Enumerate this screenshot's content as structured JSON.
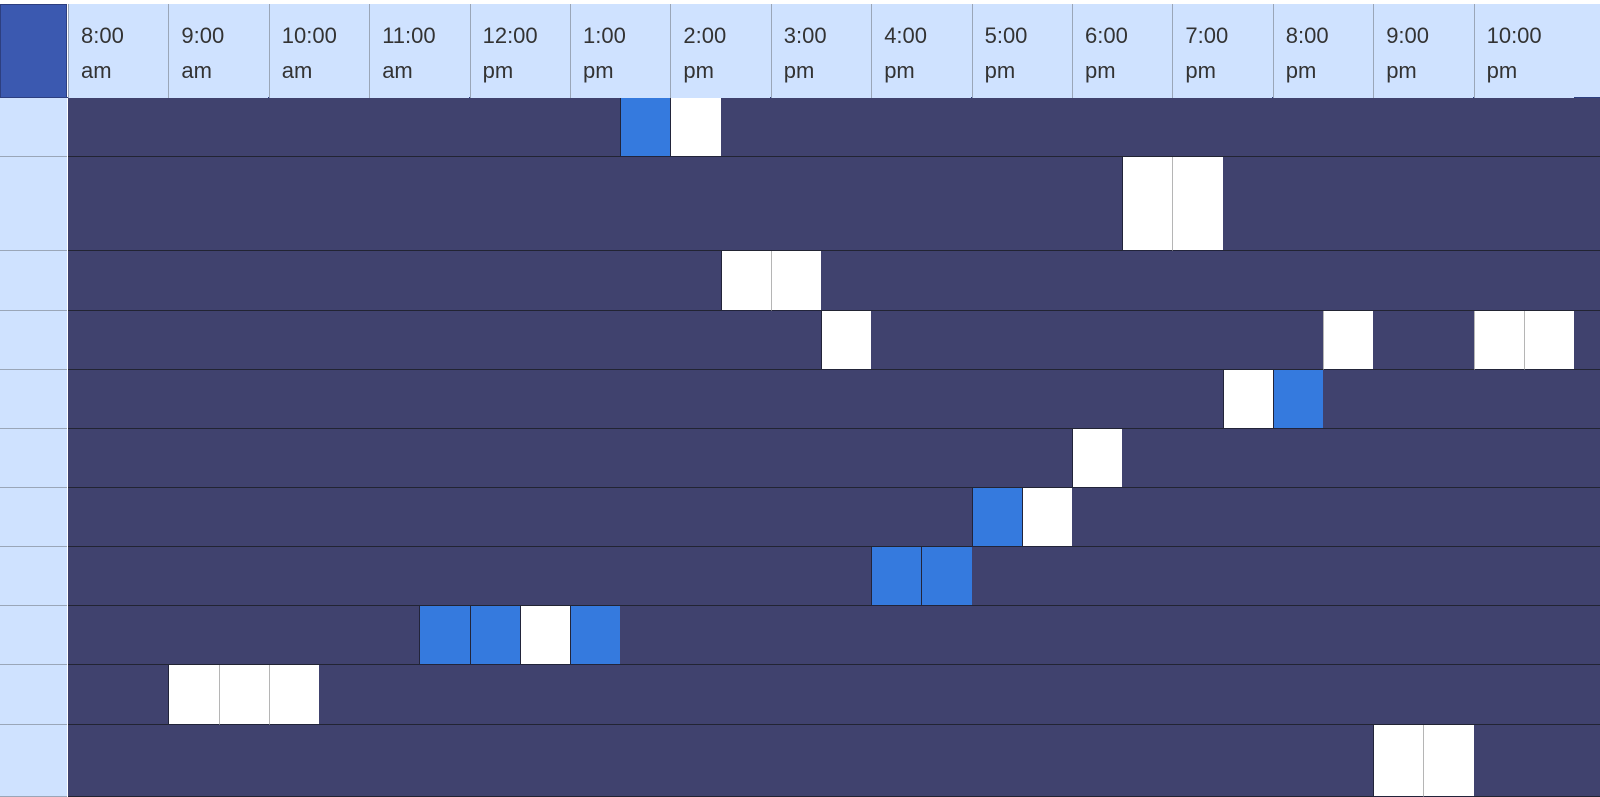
{
  "time_columns": [
    {
      "hour": "8:00",
      "period": "am"
    },
    {
      "hour": "9:00",
      "period": "am"
    },
    {
      "hour": "10:00",
      "period": "am"
    },
    {
      "hour": "11:00",
      "period": "am"
    },
    {
      "hour": "12:00",
      "period": "pm"
    },
    {
      "hour": "1:00",
      "period": "pm"
    },
    {
      "hour": "2:00",
      "period": "pm"
    },
    {
      "hour": "3:00",
      "period": "pm"
    },
    {
      "hour": "4:00",
      "period": "pm"
    },
    {
      "hour": "5:00",
      "period": "pm"
    },
    {
      "hour": "6:00",
      "period": "pm"
    },
    {
      "hour": "7:00",
      "period": "pm"
    },
    {
      "hour": "8:00",
      "period": "pm"
    },
    {
      "hour": "9:00",
      "period": "pm"
    },
    {
      "hour": "10:00",
      "period": "pm"
    }
  ],
  "slot_minutes": 30,
  "colors": {
    "header_bg": "#cfe2ff",
    "corner_bg": "#3b59b0",
    "unavailable": "#40426e",
    "available": "#ffffff",
    "selected": "#357ade"
  },
  "rows": [
    {
      "slots": [
        {
          "slot": 11,
          "state": "selected"
        },
        {
          "slot": 12,
          "state": "available"
        }
      ]
    },
    {
      "slots": [
        {
          "slot": 21,
          "state": "available"
        },
        {
          "slot": 22,
          "state": "available"
        }
      ]
    },
    {
      "slots": [
        {
          "slot": 13,
          "state": "available"
        },
        {
          "slot": 14,
          "state": "available"
        }
      ]
    },
    {
      "slots": [
        {
          "slot": 15,
          "state": "available"
        },
        {
          "slot": 25,
          "state": "available"
        },
        {
          "slot": 28,
          "state": "available"
        },
        {
          "slot": 29,
          "state": "available"
        }
      ]
    },
    {
      "slots": [
        {
          "slot": 23,
          "state": "available"
        },
        {
          "slot": 24,
          "state": "selected"
        }
      ]
    },
    {
      "slots": [
        {
          "slot": 20,
          "state": "available"
        }
      ]
    },
    {
      "slots": [
        {
          "slot": 18,
          "state": "selected"
        },
        {
          "slot": 19,
          "state": "available"
        }
      ]
    },
    {
      "slots": [
        {
          "slot": 16,
          "state": "selected"
        },
        {
          "slot": 17,
          "state": "selected"
        }
      ]
    },
    {
      "slots": [
        {
          "slot": 7,
          "state": "selected"
        },
        {
          "slot": 8,
          "state": "selected"
        },
        {
          "slot": 9,
          "state": "available"
        },
        {
          "slot": 10,
          "state": "selected"
        }
      ]
    },
    {
      "slots": [
        {
          "slot": 2,
          "state": "available"
        },
        {
          "slot": 3,
          "state": "available"
        },
        {
          "slot": 4,
          "state": "available"
        }
      ]
    },
    {
      "slots": [
        {
          "slot": 26,
          "state": "available"
        },
        {
          "slot": 27,
          "state": "available"
        }
      ]
    }
  ]
}
